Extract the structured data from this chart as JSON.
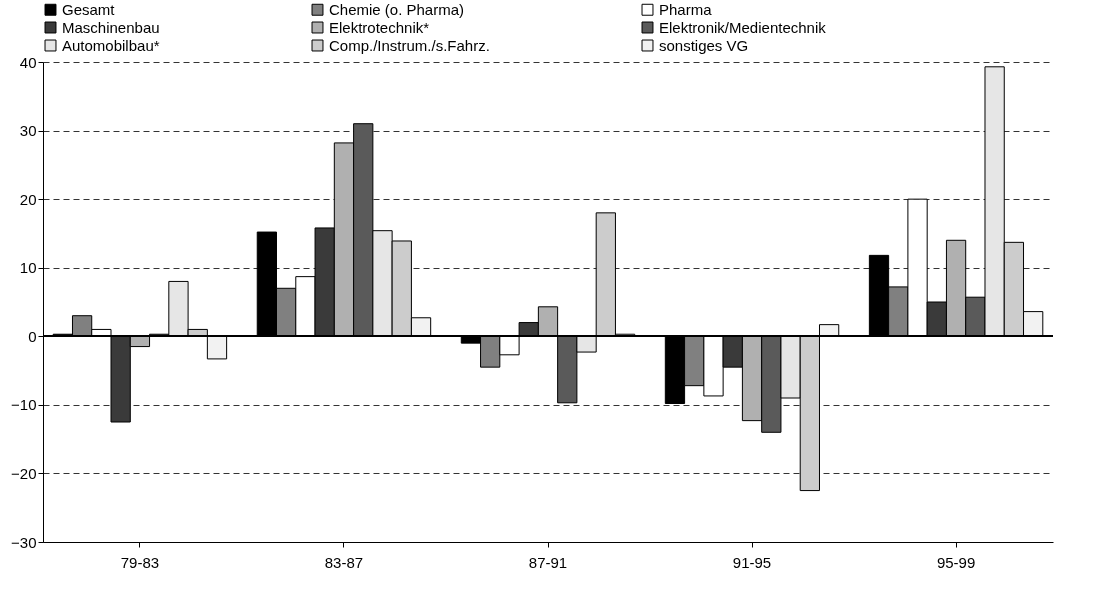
{
  "chart_data": {
    "type": "bar",
    "categories": [
      "79-83",
      "83-87",
      "87-91",
      "91-95",
      "95-99"
    ],
    "series": [
      {
        "name": "Gesamt",
        "color": "#000000",
        "values": [
          0.3,
          15.2,
          -1,
          -9.8,
          11.8
        ]
      },
      {
        "name": "Chemie (o. Pharma)",
        "color": "#808080",
        "values": [
          3,
          7,
          -4.5,
          -7.2,
          7.2
        ]
      },
      {
        "name": "Pharma",
        "color": "#ffffff",
        "values": [
          1,
          8.7,
          -2.7,
          -8.7,
          20
        ]
      },
      {
        "name": "Maschinenbau",
        "color": "#3a3a3a",
        "values": [
          -12.5,
          15.8,
          2,
          -4.5,
          5
        ]
      },
      {
        "name": "Elektrotechnik*",
        "color": "#b0b0b0",
        "values": [
          -1.5,
          28.2,
          4.3,
          -12.3,
          14
        ]
      },
      {
        "name": "Elektronik/Medientechnik",
        "color": "#5a5a5a",
        "values": [
          0.3,
          31,
          -9.7,
          -14,
          5.7
        ]
      },
      {
        "name": "Automobilbau*",
        "color": "#e6e6e6",
        "values": [
          8,
          15.4,
          -2.3,
          -9,
          39.3
        ]
      },
      {
        "name": "Comp./Instrum./s.Fahrz.",
        "color": "#cccccc",
        "values": [
          1,
          13.9,
          18,
          -22.5,
          13.7
        ]
      },
      {
        "name": "sonstiges VG",
        "color": "#f2f2f2",
        "values": [
          -3.3,
          2.7,
          0.3,
          1.7,
          3.6
        ]
      }
    ],
    "ylim": [
      -30,
      40
    ],
    "yticks": [
      -30,
      -20,
      -10,
      0,
      10,
      20,
      30,
      40
    ],
    "grid": "y",
    "legend": "top"
  }
}
